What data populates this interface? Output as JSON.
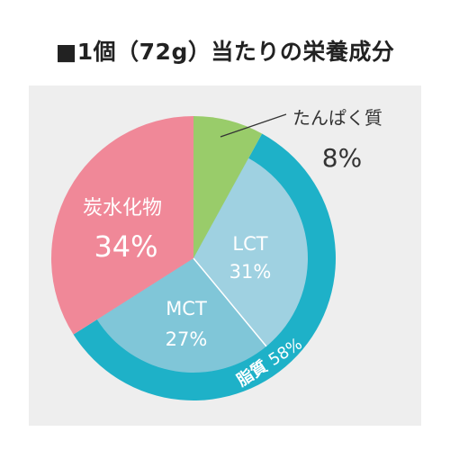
{
  "title": "■1個（72g）当たりの栄養成分",
  "chart_data": {
    "type": "pie",
    "title": "■1個（72g）当たりの栄養成分",
    "unit": "%",
    "slices": [
      {
        "label": "たんぱく質",
        "value": 8,
        "value_label": "8%",
        "color": "#99cc6a"
      },
      {
        "label": "LCT",
        "value": 31,
        "value_label": "31%",
        "color": "#9fd1e1",
        "group": "脂質"
      },
      {
        "label": "MCT",
        "value": 27,
        "value_label": "27%",
        "color": "#80c6d8",
        "group": "脂質"
      },
      {
        "label": "炭水化物",
        "value": 34,
        "value_label": "34%",
        "color": "#f08898"
      }
    ],
    "groups": [
      {
        "label": "脂質",
        "value": 58,
        "value_label": "58%",
        "color": "#1eb1c8",
        "members": [
          "LCT",
          "MCT"
        ]
      }
    ]
  }
}
